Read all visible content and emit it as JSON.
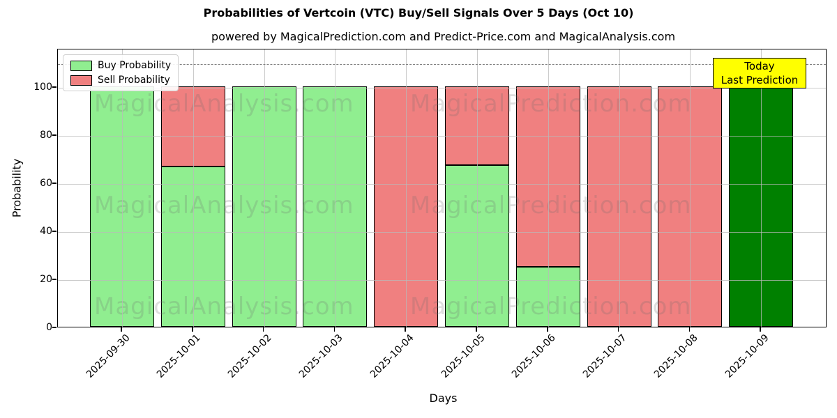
{
  "chart_data": {
    "type": "bar",
    "stacked": true,
    "title": "Probabilities of Vertcoin (VTC) Buy/Sell Signals Over 5 Days (Oct 10)",
    "subtitle": "powered by MagicalPrediction.com and Predict-Price.com and MagicalAnalysis.com",
    "xlabel": "Days",
    "ylabel": "Probability",
    "categories": [
      "2025-09-30",
      "2025-10-01",
      "2025-10-02",
      "2025-10-03",
      "2025-10-04",
      "2025-10-05",
      "2025-10-06",
      "2025-10-07",
      "2025-10-08",
      "2025-10-09"
    ],
    "series": [
      {
        "name": "Buy Probability",
        "color": "#90EE90",
        "in_legend": true,
        "values": [
          100,
          66.7,
          100,
          100,
          0,
          67.3,
          25,
          0,
          0,
          0
        ]
      },
      {
        "name": "Sell Probability",
        "color": "#F08080",
        "in_legend": true,
        "values": [
          0,
          33.3,
          0,
          0,
          100,
          32.7,
          75,
          100,
          100,
          0
        ]
      },
      {
        "name": "Today Last Prediction",
        "color": "#008000",
        "in_legend": false,
        "values": [
          0,
          0,
          0,
          0,
          0,
          0,
          0,
          0,
          0,
          100
        ]
      }
    ],
    "yticks": [
      0,
      20,
      40,
      60,
      80,
      100
    ],
    "ylim": [
      0,
      116
    ],
    "grid": true,
    "legend_position": "upper left",
    "dashed_line_y": 110,
    "bar_edge_color": "#000000",
    "annotation": {
      "lines": [
        "Today",
        "Last Prediction"
      ],
      "bg_color": "#FFFF00",
      "border_color": "#000000"
    },
    "watermarks": {
      "left_text": "MagicalAnalysis.com",
      "right_text": "MagicalPrediction.com",
      "color": "#6e6e6e",
      "opacity": 0.22,
      "rows": 3
    }
  }
}
